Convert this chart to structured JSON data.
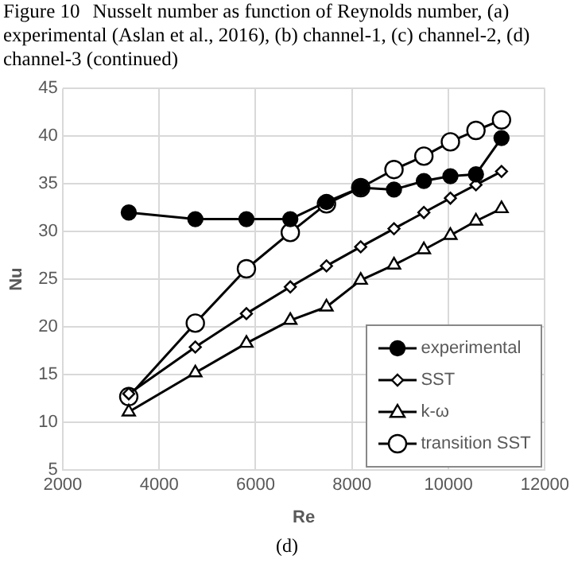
{
  "chart_data": {
    "type": "line",
    "title": "Figure 10\tNusselt number as function of Reynolds number, (a) experimental (Aslan et al., 2016), (b) channel-1, (c) channel-2, (d) channel-3 (continued)",
    "xlabel": "Re",
    "ylabel": "Nu",
    "annotations": [
      "(d)"
    ],
    "x": [
      3370,
      4750,
      5810,
      6720,
      7470,
      8180,
      8870,
      9490,
      10040,
      10570,
      11100
    ],
    "series": [
      {
        "name": "experimental",
        "color": "#000000",
        "marker": "circle",
        "values": [
          32.0,
          31.3,
          31.3,
          31.3,
          33.1,
          34.6,
          34.4,
          35.3,
          35.8,
          36.0,
          39.8
        ]
      },
      {
        "name": "SST",
        "color": "#000000",
        "marker": "diamond",
        "values": [
          13.0,
          17.9,
          21.4,
          24.2,
          26.4,
          28.4,
          30.3,
          32.0,
          33.5,
          34.9,
          36.3
        ]
      },
      {
        "name": "k-ω",
        "color": "#000000",
        "marker": "triangle",
        "values": [
          11.1,
          15.2,
          18.3,
          20.7,
          22.1,
          24.9,
          26.5,
          28.1,
          29.6,
          31.1,
          32.4
        ]
      },
      {
        "name": "transition SST",
        "color": "#000000",
        "marker": "circle",
        "values": [
          12.7,
          20.4,
          26.1,
          29.9,
          32.9,
          34.6,
          36.5,
          37.9,
          39.4,
          40.6,
          41.7
        ]
      }
    ],
    "xlim": [
      2000,
      12000
    ],
    "xticks": [
      2000,
      4000,
      6000,
      8000,
      10000,
      12000
    ],
    "ylim": [
      5,
      45
    ],
    "yticks": [
      5,
      10,
      15,
      20,
      25,
      30,
      35,
      40,
      45
    ],
    "grid": true,
    "legend": "bottom right",
    "line_style": "solid"
  }
}
